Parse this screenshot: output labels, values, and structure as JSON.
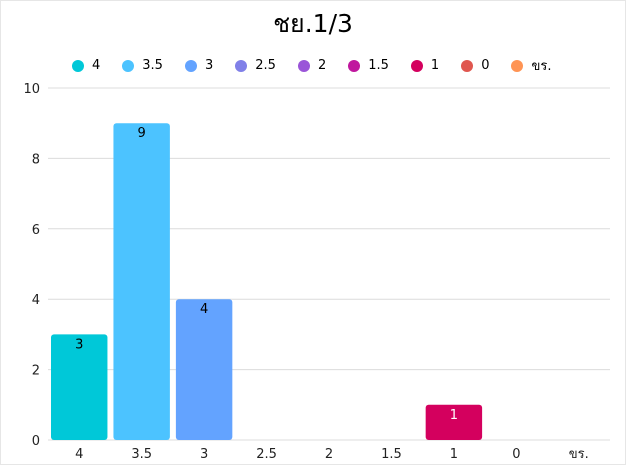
{
  "chart_data": {
    "type": "bar",
    "title": "ชย.1/3",
    "xlabel": "",
    "ylabel": "",
    "categories": [
      "4",
      "3.5",
      "3",
      "2.5",
      "2",
      "1.5",
      "1",
      "0",
      "ขร."
    ],
    "values": [
      3,
      9,
      4,
      0,
      0,
      0,
      1,
      0,
      0
    ],
    "data_labels": [
      "3",
      "9",
      "4",
      "",
      "",
      "",
      "1",
      "",
      ""
    ],
    "colors": [
      "#00c8d8",
      "#4cc3ff",
      "#63a3ff",
      "#8080e8",
      "#9a55d8",
      "#c0179e",
      "#d4005e",
      "#e0574f",
      "#ff9454"
    ],
    "ylim": [
      0,
      10
    ],
    "yticks": [
      "0",
      "2",
      "4",
      "6",
      "8",
      "10"
    ],
    "legend": {
      "position": "top"
    },
    "grid": true
  }
}
